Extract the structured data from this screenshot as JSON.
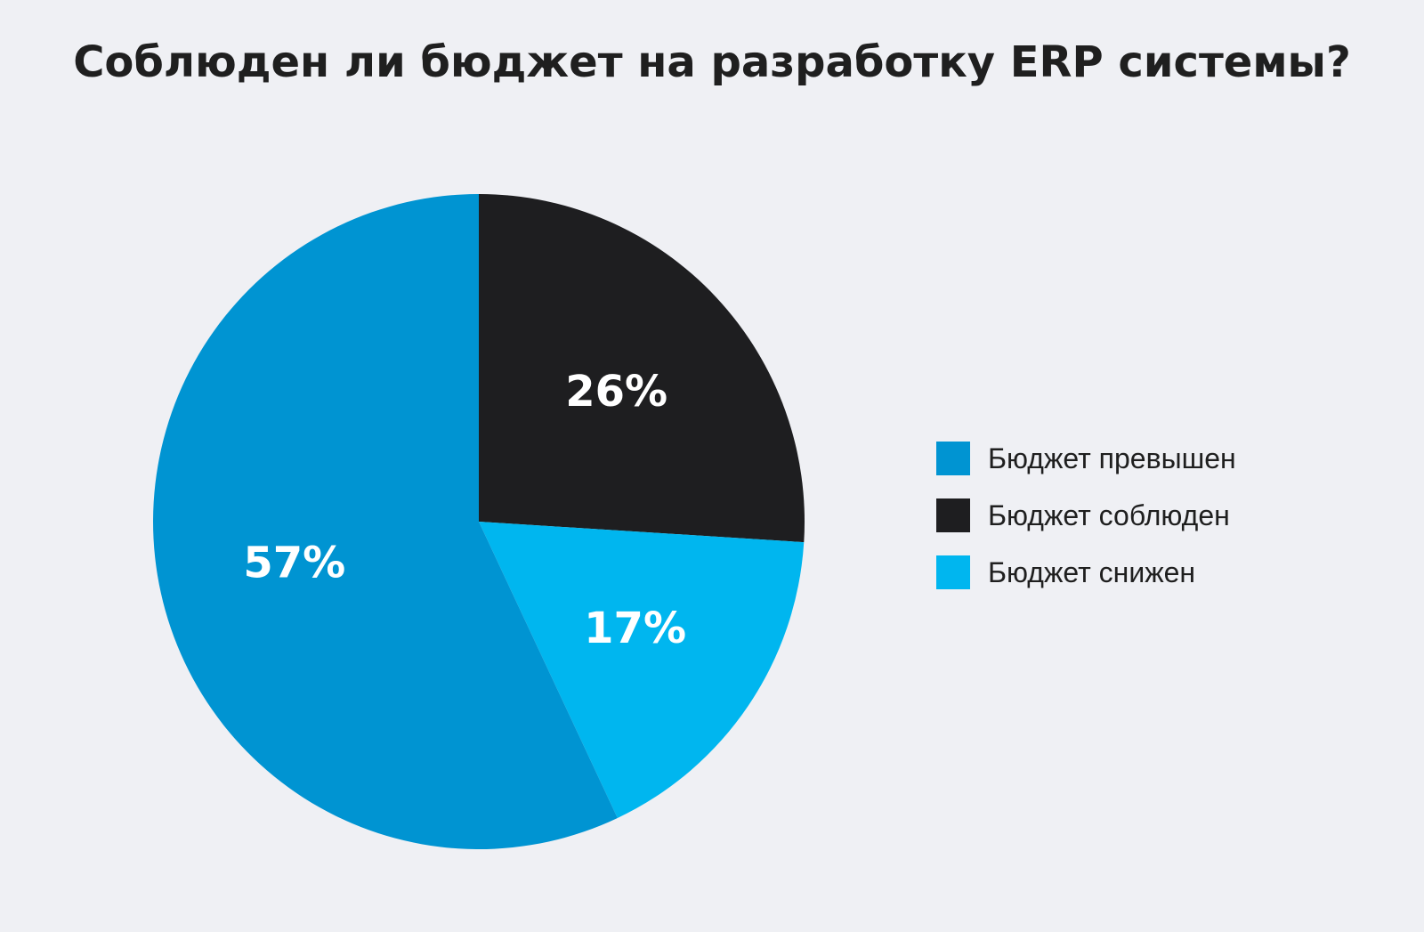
{
  "chart_data": {
    "type": "pie",
    "title": "Соблюден ли бюджет на разработку ERP системы?",
    "legend_position": "right",
    "slices": [
      {
        "name": "Бюджет превышен",
        "value": 57,
        "label": "57%",
        "color": "#0094d2"
      },
      {
        "name": "Бюджет соблюден",
        "value": 26,
        "label": "26%",
        "color": "#1e1e20"
      },
      {
        "name": "Бюджет снижен",
        "value": 17,
        "label": "17%",
        "color": "#00b6ef"
      }
    ]
  }
}
